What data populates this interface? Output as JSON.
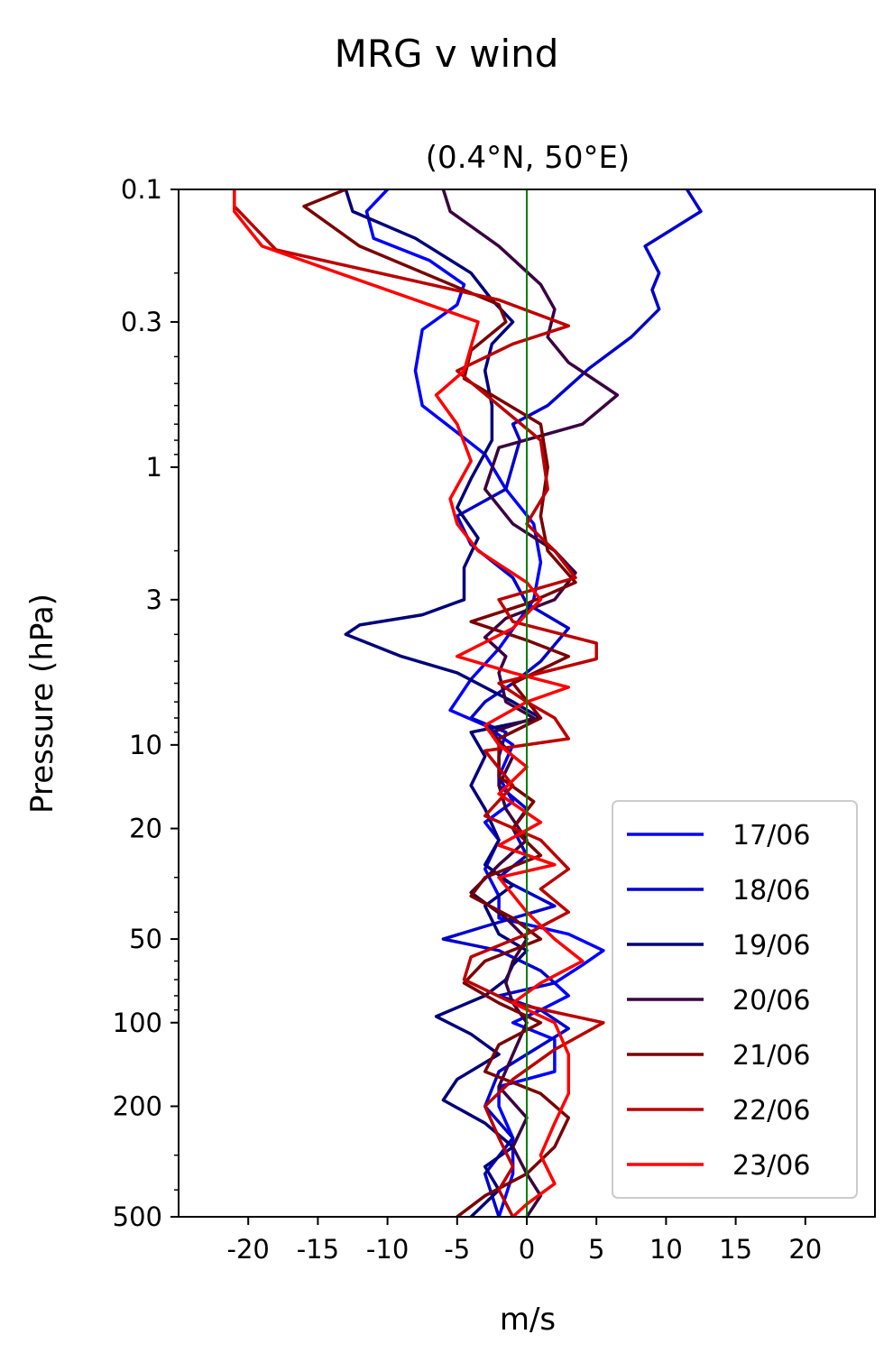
{
  "chart_data": {
    "type": "line",
    "title": "MRG v wind",
    "subtitle": "(0.4°N, 50°E)",
    "xlabel": "m/s",
    "ylabel": "Pressure (hPa)",
    "xlim": [
      -25,
      25
    ],
    "ylim": [
      500,
      0.1
    ],
    "yscale": "log",
    "y_inverted": true,
    "x_ticks": [
      -20,
      -15,
      -10,
      -5,
      0,
      5,
      10,
      15,
      20
    ],
    "x_tick_labels": [
      "-20",
      "-15",
      "-10",
      "-5",
      "0",
      "5",
      "10",
      "15",
      "20"
    ],
    "y_ticks": [
      0.1,
      0.3,
      1,
      3,
      10,
      20,
      50,
      100,
      200,
      500
    ],
    "y_tick_labels": [
      "0.1",
      "0.3",
      "1",
      "3",
      "10",
      "20",
      "50",
      "100",
      "200",
      "500"
    ],
    "grid": false,
    "zero_line": {
      "x": 0,
      "color": "#008000"
    },
    "legend_position": "lower-right",
    "series": [
      {
        "name": "17/06",
        "color": "#0000ff",
        "points": [
          [
            -10,
            0.1
          ],
          [
            -11.5,
            0.12
          ],
          [
            -11,
            0.15
          ],
          [
            -7,
            0.18
          ],
          [
            -4.5,
            0.22
          ],
          [
            -5,
            0.26
          ],
          [
            -7.5,
            0.32
          ],
          [
            -8,
            0.45
          ],
          [
            -7.5,
            0.6
          ],
          [
            -5,
            0.75
          ],
          [
            -3,
            0.9
          ],
          [
            -1.5,
            1.2
          ],
          [
            0.5,
            1.6
          ],
          [
            1,
            2.2
          ],
          [
            0.5,
            3
          ],
          [
            -2,
            4.5
          ],
          [
            -4,
            5.8
          ],
          [
            -5.5,
            7.5
          ],
          [
            -3,
            8.5
          ],
          [
            -1,
            10
          ],
          [
            -2,
            13
          ],
          [
            -1,
            16
          ],
          [
            -3,
            19
          ],
          [
            -2,
            22
          ],
          [
            -3,
            28
          ],
          [
            -2,
            35
          ],
          [
            -2,
            42
          ],
          [
            3,
            48
          ],
          [
            5.5,
            55
          ],
          [
            4,
            62
          ],
          [
            2,
            72
          ],
          [
            3,
            80
          ],
          [
            1,
            90
          ],
          [
            -1,
            100
          ],
          [
            2,
            115
          ],
          [
            2,
            150
          ],
          [
            -2,
            170
          ],
          [
            -2,
            200
          ],
          [
            -1,
            260
          ],
          [
            -1,
            350
          ],
          [
            -2,
            500
          ]
        ]
      },
      {
        "name": "18/06",
        "color": "#0000cc",
        "points": [
          [
            11.5,
            0.1
          ],
          [
            12.5,
            0.12
          ],
          [
            8.5,
            0.16
          ],
          [
            9.5,
            0.2
          ],
          [
            9,
            0.23
          ],
          [
            9.5,
            0.27
          ],
          [
            7.5,
            0.34
          ],
          [
            4.5,
            0.44
          ],
          [
            1.5,
            0.6
          ],
          [
            -1,
            0.7
          ],
          [
            -0.5,
            0.8
          ],
          [
            -1.5,
            1.2
          ],
          [
            -5,
            1.5
          ],
          [
            -4,
            1.9
          ],
          [
            -1,
            2.5
          ],
          [
            0,
            3.1
          ],
          [
            3,
            3.8
          ],
          [
            1,
            5
          ],
          [
            -1,
            6
          ],
          [
            -3,
            7
          ],
          [
            -4,
            8
          ],
          [
            -1.5,
            9
          ],
          [
            -2,
            11
          ],
          [
            -2,
            14
          ],
          [
            0,
            17
          ],
          [
            -1,
            20
          ],
          [
            0,
            25
          ],
          [
            -2,
            30
          ],
          [
            2,
            38
          ],
          [
            -3,
            45
          ],
          [
            -6,
            50
          ],
          [
            -2,
            55
          ],
          [
            1,
            65
          ],
          [
            2,
            72
          ],
          [
            -2,
            80
          ],
          [
            1,
            90
          ],
          [
            3,
            105
          ],
          [
            0,
            130
          ],
          [
            -2,
            150
          ],
          [
            -3,
            200
          ],
          [
            -1,
            260
          ],
          [
            -3,
            350
          ],
          [
            -2,
            500
          ]
        ]
      },
      {
        "name": "19/06",
        "color": "#00007a",
        "points": [
          [
            -13,
            0.1
          ],
          [
            -12.5,
            0.12
          ],
          [
            -8,
            0.15
          ],
          [
            -4,
            0.2
          ],
          [
            -2.5,
            0.25
          ],
          [
            -1,
            0.3
          ],
          [
            -2.5,
            0.36
          ],
          [
            -3,
            0.45
          ],
          [
            -2.5,
            0.6
          ],
          [
            -2.5,
            0.8
          ],
          [
            -4,
            1.1
          ],
          [
            -5,
            1.4
          ],
          [
            -3.5,
            1.8
          ],
          [
            -4.5,
            2.3
          ],
          [
            -4.5,
            3
          ],
          [
            -7.5,
            3.4
          ],
          [
            -12,
            3.7
          ],
          [
            -13,
            4
          ],
          [
            -9,
            4.8
          ],
          [
            -5,
            5.5
          ],
          [
            -1,
            7
          ],
          [
            1,
            8
          ],
          [
            -4,
            9
          ],
          [
            -3,
            11
          ],
          [
            -4,
            14
          ],
          [
            -3,
            17
          ],
          [
            -2,
            22
          ],
          [
            -3,
            27
          ],
          [
            -1,
            32
          ],
          [
            -3,
            38
          ],
          [
            -2,
            48
          ],
          [
            0,
            55
          ],
          [
            -1,
            62
          ],
          [
            -1.5,
            70
          ],
          [
            -3,
            80
          ],
          [
            -6.5,
            95
          ],
          [
            -4,
            110
          ],
          [
            -2,
            130
          ],
          [
            -5,
            160
          ],
          [
            -6,
            190
          ],
          [
            -3,
            230
          ],
          [
            -1,
            280
          ],
          [
            -3,
            330
          ],
          [
            -2,
            400
          ],
          [
            -4,
            500
          ]
        ]
      },
      {
        "name": "20/06",
        "color": "#3a0040",
        "points": [
          [
            -6,
            0.1
          ],
          [
            -5.5,
            0.12
          ],
          [
            -2,
            0.16
          ],
          [
            1,
            0.22
          ],
          [
            2,
            0.27
          ],
          [
            1.5,
            0.34
          ],
          [
            3,
            0.42
          ],
          [
            6.5,
            0.55
          ],
          [
            4,
            0.7
          ],
          [
            -2,
            0.85
          ],
          [
            -3,
            1.2
          ],
          [
            -1,
            1.6
          ],
          [
            2,
            2
          ],
          [
            3.5,
            2.4
          ],
          [
            2,
            3
          ],
          [
            -1.5,
            3.5
          ],
          [
            -3,
            4.1
          ],
          [
            -1.5,
            4.8
          ],
          [
            -2,
            5.5
          ],
          [
            -1.5,
            7
          ],
          [
            0.5,
            8
          ],
          [
            -2.5,
            9
          ],
          [
            -1,
            11
          ],
          [
            -2,
            14
          ],
          [
            -1.5,
            17
          ],
          [
            0,
            22
          ],
          [
            -2,
            27
          ],
          [
            -4,
            34
          ],
          [
            -1.5,
            42
          ],
          [
            0,
            50
          ],
          [
            -1,
            60
          ],
          [
            -1.5,
            72
          ],
          [
            -1,
            85
          ],
          [
            0,
            100
          ],
          [
            -1,
            130
          ],
          [
            -2,
            170
          ],
          [
            0,
            220
          ],
          [
            -1,
            280
          ],
          [
            0,
            350
          ],
          [
            1,
            420
          ],
          [
            0,
            500
          ]
        ]
      },
      {
        "name": "21/06",
        "color": "#7a0000",
        "points": [
          [
            -13,
            0.1
          ],
          [
            -16,
            0.115
          ],
          [
            -12,
            0.16
          ],
          [
            -2,
            0.26
          ],
          [
            -1.5,
            0.3
          ],
          [
            -4,
            0.38
          ],
          [
            -4.5,
            0.48
          ],
          [
            -2.5,
            0.55
          ],
          [
            1,
            0.7
          ],
          [
            1.5,
            1
          ],
          [
            1,
            1.5
          ],
          [
            1.5,
            2
          ],
          [
            3.5,
            2.6
          ],
          [
            0,
            3.1
          ],
          [
            -4,
            3.6
          ],
          [
            0,
            4.2
          ],
          [
            3,
            4.8
          ],
          [
            -1,
            6
          ],
          [
            1,
            8
          ],
          [
            -2,
            9.5
          ],
          [
            -2,
            13
          ],
          [
            0.5,
            16
          ],
          [
            -1,
            20
          ],
          [
            1,
            25
          ],
          [
            -3,
            30
          ],
          [
            -4,
            35
          ],
          [
            -1,
            42
          ],
          [
            1,
            50
          ],
          [
            -3,
            60
          ],
          [
            -4.5,
            72
          ],
          [
            -2,
            85
          ],
          [
            1,
            100
          ],
          [
            -2,
            120
          ],
          [
            -3,
            150
          ],
          [
            1,
            180
          ],
          [
            3,
            220
          ],
          [
            2,
            280
          ],
          [
            0,
            350
          ],
          [
            -3,
            420
          ],
          [
            -5,
            500
          ]
        ]
      },
      {
        "name": "22/06",
        "color": "#bb0000",
        "points": [
          [
            -21,
            0.1
          ],
          [
            -21,
            0.115
          ],
          [
            -18,
            0.165
          ],
          [
            -2,
            0.25
          ],
          [
            3,
            0.31
          ],
          [
            -1,
            0.36
          ],
          [
            -5,
            0.45
          ],
          [
            -2,
            0.6
          ],
          [
            1,
            0.8
          ],
          [
            1.5,
            1.2
          ],
          [
            0,
            1.6
          ],
          [
            2,
            2
          ],
          [
            3.5,
            2.5
          ],
          [
            -2,
            3
          ],
          [
            -1,
            3.6
          ],
          [
            5,
            4.3
          ],
          [
            5,
            4.9
          ],
          [
            -2,
            6
          ],
          [
            0,
            7
          ],
          [
            2,
            8
          ],
          [
            3,
            9.5
          ],
          [
            -3,
            10.5
          ],
          [
            -1,
            14
          ],
          [
            -3,
            18
          ],
          [
            1,
            22
          ],
          [
            3,
            28
          ],
          [
            1,
            33
          ],
          [
            3,
            40
          ],
          [
            0,
            48
          ],
          [
            -4,
            58
          ],
          [
            -4.5,
            70
          ],
          [
            -1,
            85
          ],
          [
            5.5,
            100
          ],
          [
            2,
            125
          ],
          [
            -1,
            160
          ],
          [
            -3,
            200
          ],
          [
            -2,
            260
          ],
          [
            -1,
            330
          ],
          [
            -2,
            400
          ],
          [
            -1,
            500
          ]
        ]
      },
      {
        "name": "23/06",
        "color": "#ff0000",
        "points": [
          [
            -21,
            0.1
          ],
          [
            -21,
            0.12
          ],
          [
            -19,
            0.16
          ],
          [
            -3.5,
            0.3
          ],
          [
            -4.5,
            0.45
          ],
          [
            -6.5,
            0.55
          ],
          [
            -5,
            0.7
          ],
          [
            -4,
            0.95
          ],
          [
            -5.5,
            1.3
          ],
          [
            -5,
            1.6
          ],
          [
            -3.5,
            2
          ],
          [
            0,
            2.6
          ],
          [
            1,
            3
          ],
          [
            -1,
            3.8
          ],
          [
            -5,
            4.8
          ],
          [
            -1,
            5.5
          ],
          [
            3,
            6.2
          ],
          [
            0,
            7
          ],
          [
            -3,
            8.5
          ],
          [
            -2,
            10
          ],
          [
            0,
            12
          ],
          [
            -2,
            15
          ],
          [
            1,
            19
          ],
          [
            -2,
            23
          ],
          [
            2,
            27
          ],
          [
            -2,
            30
          ],
          [
            0,
            40
          ],
          [
            2,
            50
          ],
          [
            4,
            60
          ],
          [
            1,
            72
          ],
          [
            -1,
            85
          ],
          [
            2,
            100
          ],
          [
            3,
            130
          ],
          [
            3,
            180
          ],
          [
            2,
            230
          ],
          [
            1,
            300
          ],
          [
            2,
            380
          ],
          [
            0,
            450
          ],
          [
            -1,
            500
          ]
        ]
      }
    ]
  }
}
